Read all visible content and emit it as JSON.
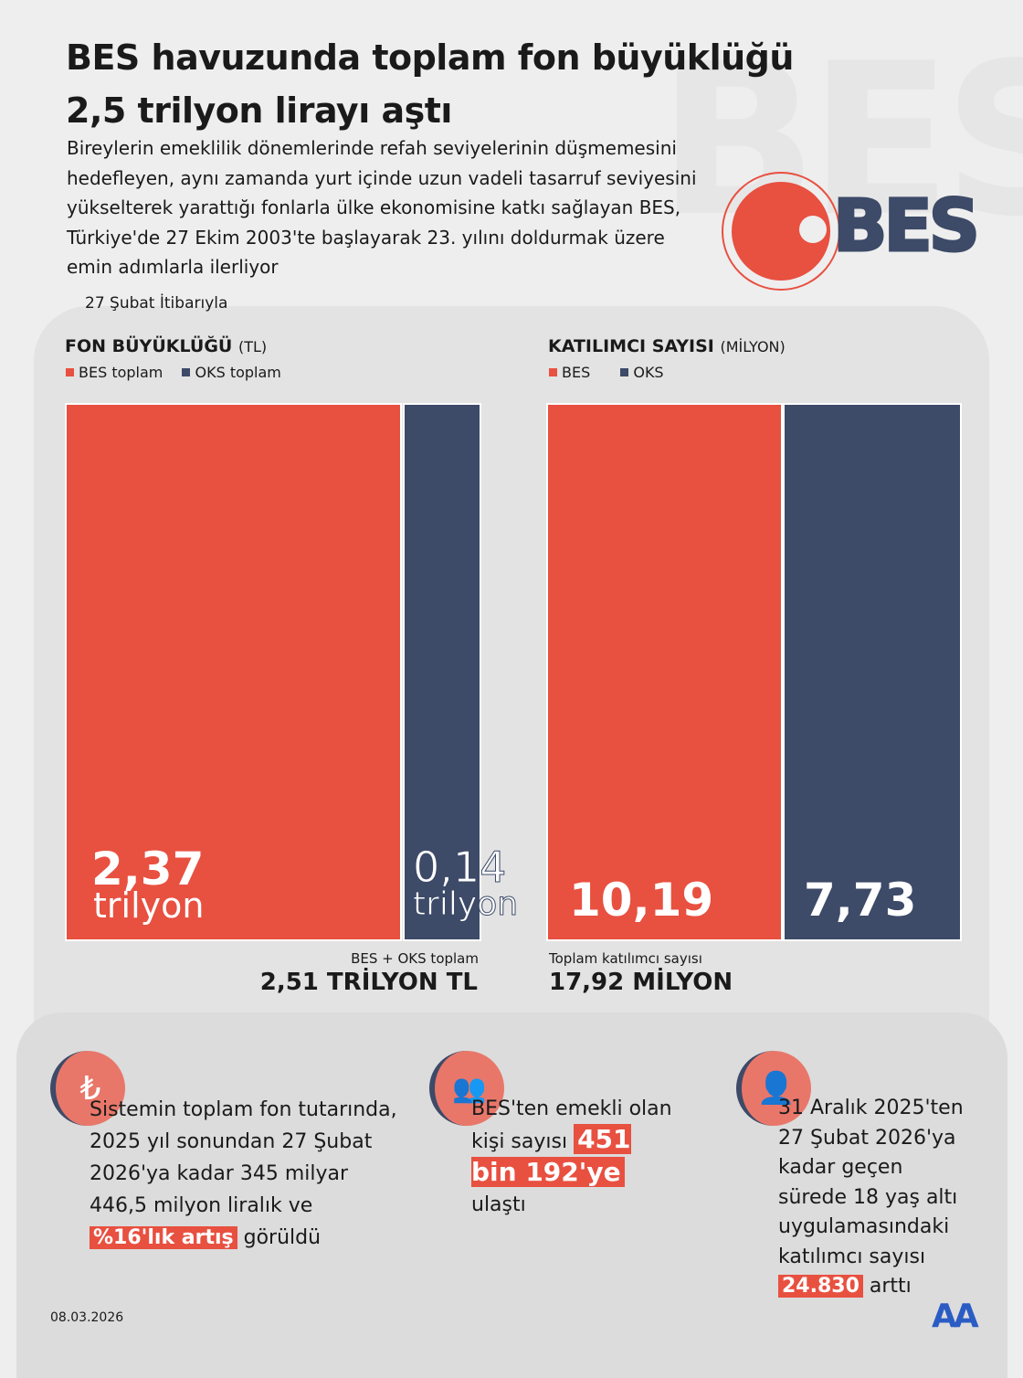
{
  "header": {
    "title_line1": "BES havuzunda toplam fon büyüklüğü",
    "title_line2": "2,5 trilyon lirayı aştı",
    "subtitle": "Bireylerin emeklilik dönemlerinde refah seviyelerinin düşmemesini hedefleyen, aynı zamanda yurt içinde uzun vadeli tasarruf seviyesini yükselterek yarattığı fonlarla ülke ekonomisine katkı sağlayan BES, Türkiye'de 27 Ekim 2003'te başlayarak 23. yılını doldurmak üzere emin adımlarla ilerliyor",
    "as_of": "27 Şubat İtibarıyla",
    "logo": "BES"
  },
  "colors": {
    "bes": "#e85040",
    "oks": "#3d4a68"
  },
  "chart_data": [
    {
      "type": "bar",
      "title": "FON BÜYÜKLÜĞÜ",
      "unit": "(TL)",
      "categories": [
        "BES toplam",
        "OKS toplam"
      ],
      "values": [
        2.37,
        0.14
      ],
      "labels": [
        "2,37",
        "0,14"
      ],
      "value_unit": "trilyon",
      "total_label": "BES + OKS toplam",
      "total_value": "2,51 TRİLYON TL"
    },
    {
      "type": "bar",
      "title": "KATILIMCI SAYISI",
      "unit": "(MİLYON)",
      "categories": [
        "BES",
        "OKS"
      ],
      "values": [
        10.19,
        7.73
      ],
      "labels": [
        "10,19",
        "7,73"
      ],
      "total_label": "Toplam katılımcı sayısı",
      "total_value": "17,92 MİLYON"
    }
  ],
  "facts": [
    {
      "icon": "lira-icon",
      "before": "Sistemin toplam fon tutarında, 2025 yıl sonundan 27 Şubat 2026'ya kadar 345 milyar 446,5 milyon liralık ve ",
      "highlight": "%16'lık artış",
      "after": " görüldü"
    },
    {
      "icon": "group-icon",
      "before": "BES'ten emekli olan kişi sayısı ",
      "highlight": "451 bin 192'ye",
      "after": " ulaştı"
    },
    {
      "icon": "person-icon",
      "before": "31 Aralık 2025'ten 27 Şubat 2026'ya kadar geçen sürede 18 yaş altı uygulamasındaki katılımcı sayısı ",
      "highlight": "24.830",
      "after": " arttı"
    }
  ],
  "footer": {
    "date": "08.03.2026",
    "logo": "AA"
  }
}
